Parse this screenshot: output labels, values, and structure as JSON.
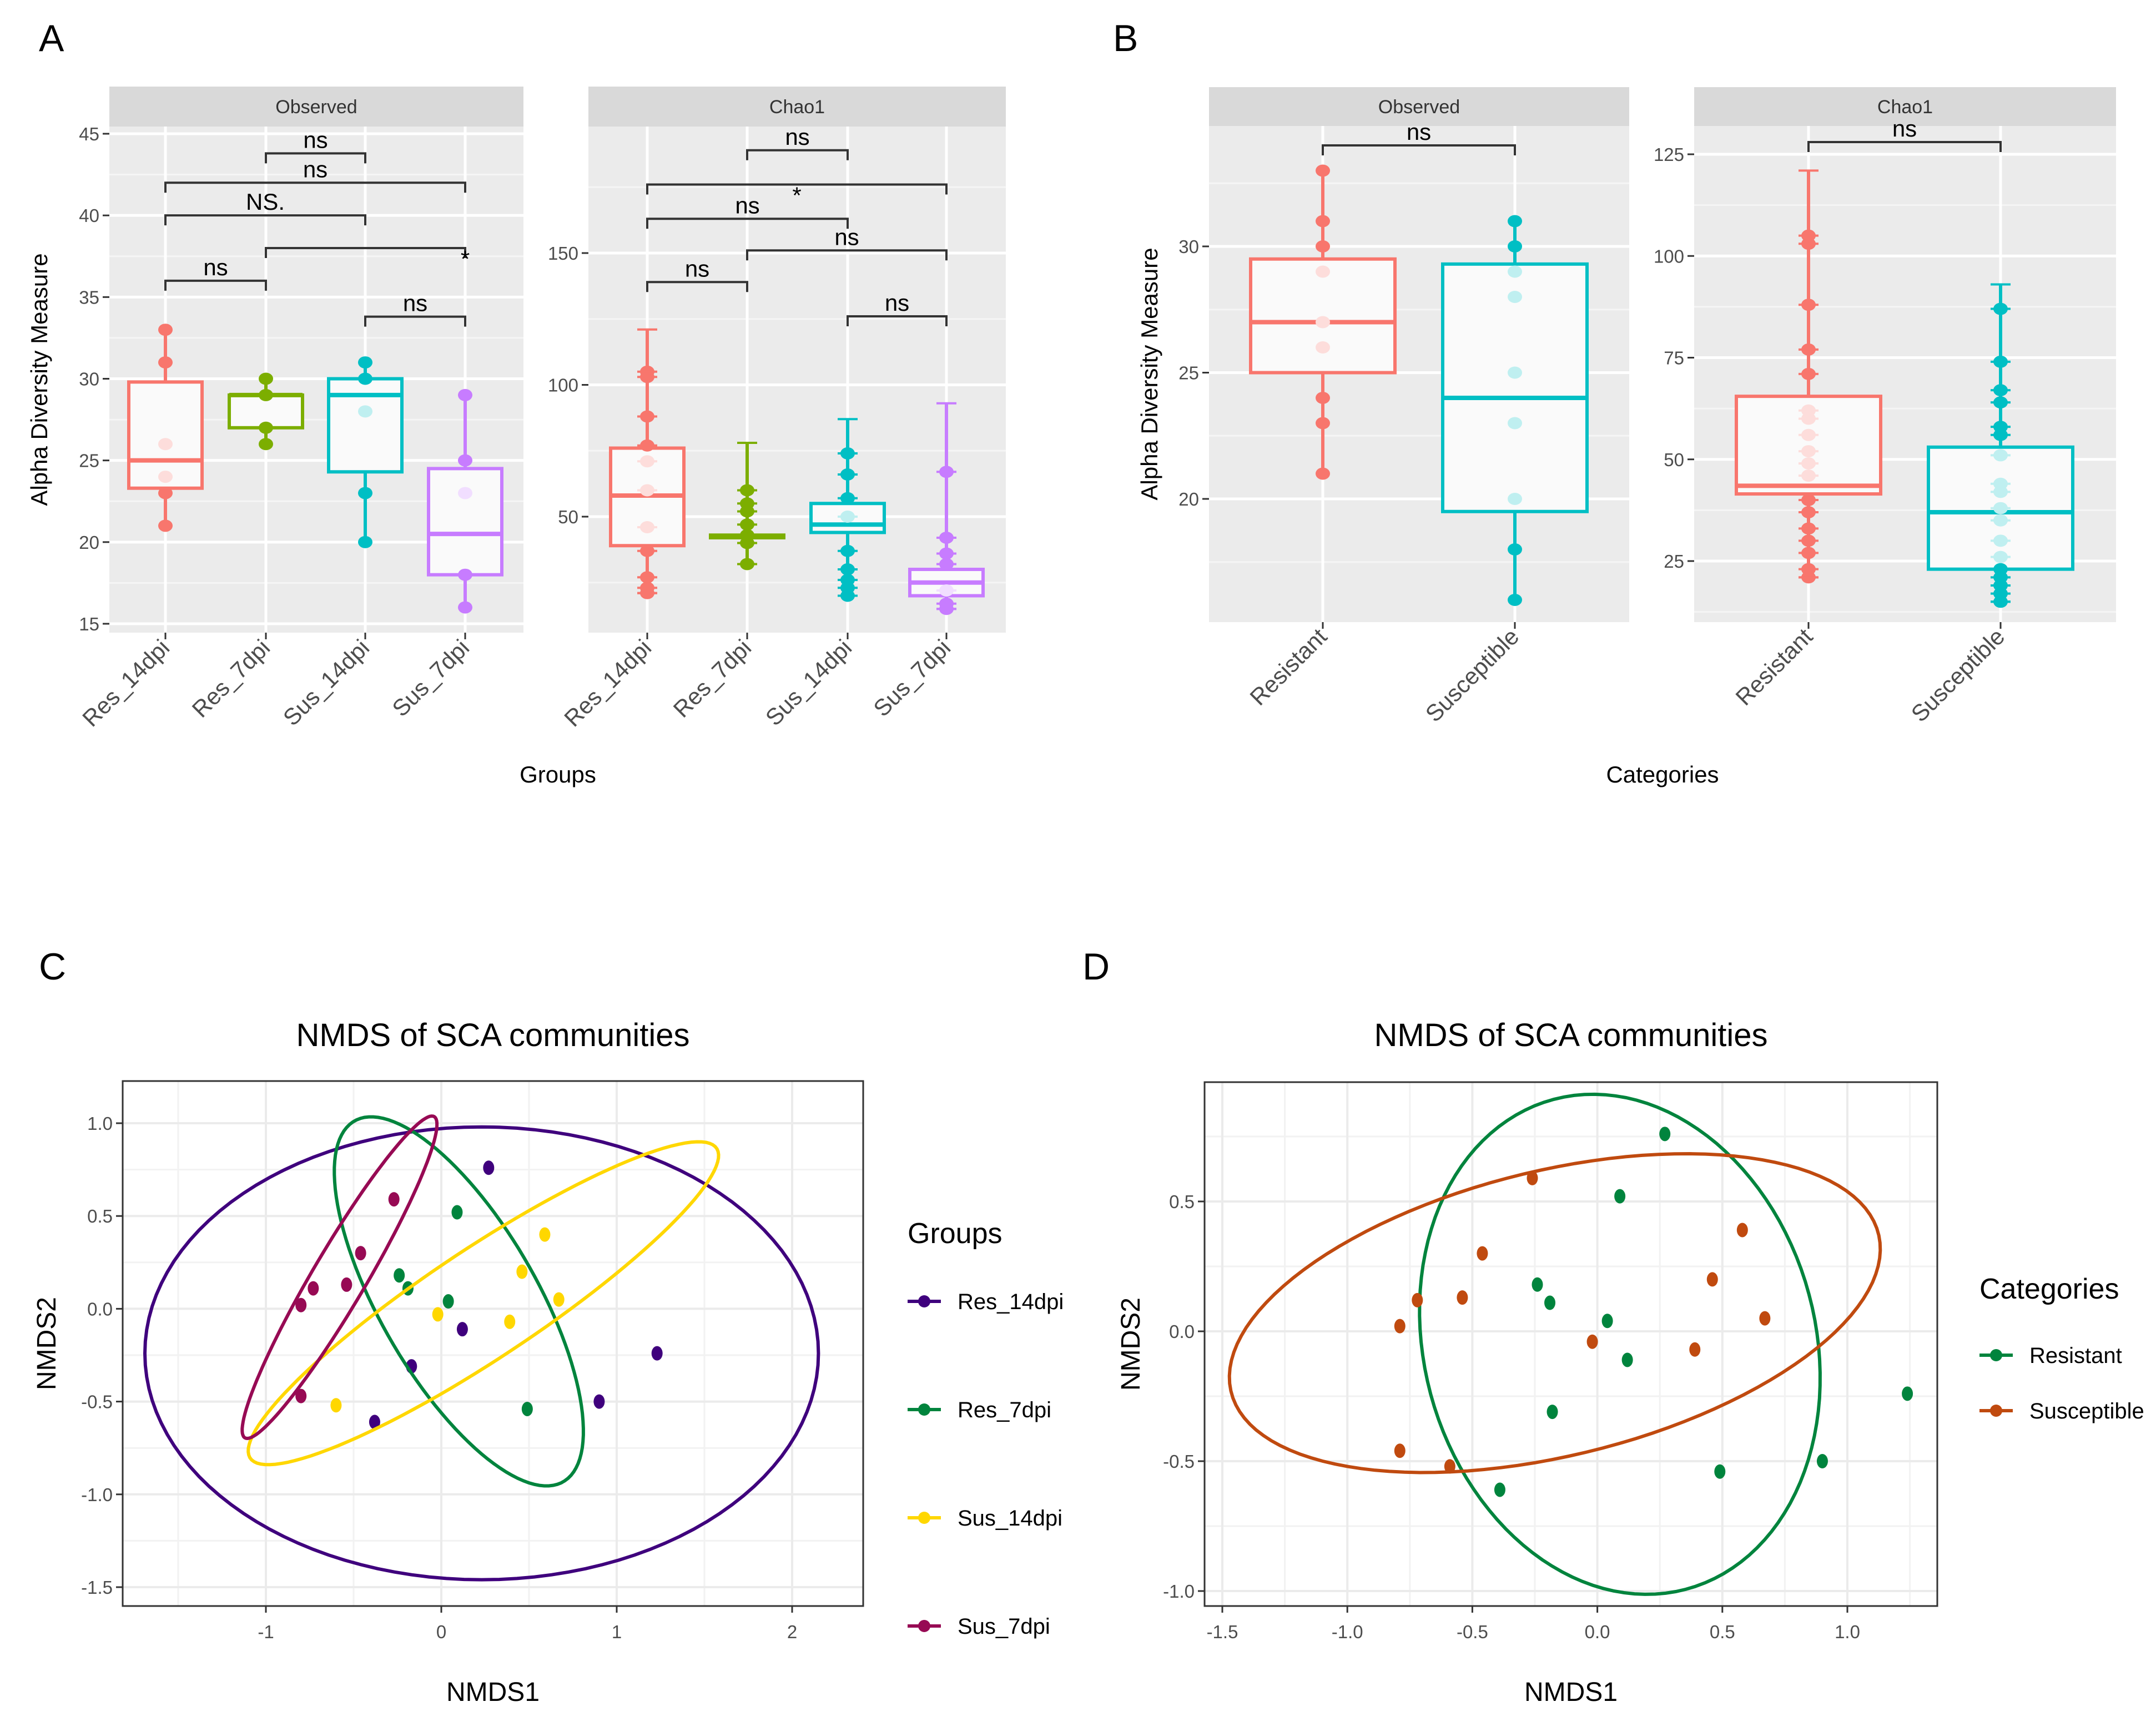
{
  "figure": {
    "panel_letters": [
      "A",
      "B",
      "C",
      "D"
    ]
  },
  "chart_data": [
    {
      "id": "A",
      "type": "box",
      "xlabel": "Groups",
      "ylabel": "Alpha Diversity Measure",
      "categories": [
        "Res_14dpi",
        "Res_7dpi",
        "Sus_14dpi",
        "Sus_7dpi"
      ],
      "colors": [
        "#F8766D",
        "#7CAE00",
        "#00BFC4",
        "#C77CFF"
      ],
      "facets": [
        {
          "strip": "Observed",
          "ylim": [
            15,
            45
          ],
          "yticks": [
            15,
            20,
            25,
            30,
            35,
            40,
            45
          ],
          "boxes": [
            {
              "category": "Res_14dpi",
              "min": 21,
              "q1": 23.3,
              "median": 25,
              "q3": 29.8,
              "max": 33,
              "points": [
                21,
                23,
                24,
                26,
                31,
                33
              ]
            },
            {
              "category": "Res_7dpi",
              "min": 26,
              "q1": 27,
              "median": 29,
              "q3": 29,
              "max": 30,
              "points": [
                26,
                27,
                29,
                30
              ]
            },
            {
              "category": "Sus_14dpi",
              "min": 20,
              "q1": 24.3,
              "median": 29,
              "q3": 30,
              "max": 31,
              "points": [
                20,
                23,
                28,
                30,
                31
              ]
            },
            {
              "category": "Sus_7dpi",
              "min": 16,
              "q1": 18,
              "median": 20.5,
              "q3": 24.5,
              "max": 29,
              "points": [
                16,
                18,
                23,
                25,
                29
              ]
            }
          ],
          "comparisons": [
            {
              "from": "Res_7dpi",
              "to": "Sus_14dpi",
              "y": 43.8,
              "label": "ns"
            },
            {
              "from": "Res_14dpi",
              "to": "Sus_7dpi",
              "y": 42,
              "label": "ns"
            },
            {
              "from": "Res_14dpi",
              "to": "Sus_14dpi",
              "y": 40,
              "label": "NS."
            },
            {
              "from": "Res_7dpi",
              "to": "Sus_7dpi",
              "y": 38,
              "label": "*"
            },
            {
              "from": "Res_14dpi",
              "to": "Res_7dpi",
              "y": 36,
              "label": "ns"
            },
            {
              "from": "Sus_14dpi",
              "to": "Sus_7dpi",
              "y": 33.8,
              "label": "ns"
            }
          ]
        },
        {
          "strip": "Chao1",
          "ylim": [
            10,
            200
          ],
          "yticks": [
            50,
            100,
            150
          ],
          "boxes": [
            {
              "category": "Res_14dpi",
              "min": 21,
              "q1": 39,
              "median": 58,
              "q3": 76,
              "max": 121,
              "points": [
                21,
                23,
                27,
                37,
                46,
                60,
                71,
                77,
                88,
                103,
                105
              ]
            },
            {
              "category": "Res_7dpi",
              "min": 32,
              "q1": 42,
              "median": 42.5,
              "q3": 43,
              "max": 78,
              "points": [
                32,
                40,
                43,
                47,
                52,
                55,
                60
              ]
            },
            {
              "category": "Sus_14dpi",
              "min": 20,
              "q1": 44,
              "median": 47,
              "q3": 55,
              "max": 87,
              "points": [
                20,
                23,
                26,
                30,
                37,
                50,
                57,
                66,
                74
              ]
            },
            {
              "category": "Sus_7dpi",
              "min": 15,
              "q1": 20,
              "median": 25,
              "q3": 30,
              "max": 93,
              "points": [
                15,
                17,
                22,
                32,
                36,
                42,
                67
              ]
            }
          ],
          "comparisons": [
            {
              "from": "Res_7dpi",
              "to": "Sus_14dpi",
              "y": 189,
              "label": "ns"
            },
            {
              "from": "Res_14dpi",
              "to": "Sus_7dpi",
              "y": 176,
              "label": "*"
            },
            {
              "from": "Res_14dpi",
              "to": "Sus_14dpi",
              "y": 163,
              "label": "ns"
            },
            {
              "from": "Res_7dpi",
              "to": "Sus_7dpi",
              "y": 151,
              "label": "ns"
            },
            {
              "from": "Res_14dpi",
              "to": "Res_7dpi",
              "y": 139,
              "label": "ns"
            },
            {
              "from": "Sus_14dpi",
              "to": "Sus_7dpi",
              "y": 126,
              "label": "ns"
            }
          ]
        }
      ]
    },
    {
      "id": "B",
      "type": "box",
      "xlabel": "Categories",
      "ylabel": "Alpha Diversity Measure",
      "categories": [
        "Resistant",
        "Susceptible"
      ],
      "colors": [
        "#F8766D",
        "#00BFC4"
      ],
      "facets": [
        {
          "strip": "Observed",
          "ylim": [
            14.9,
            35.2
          ],
          "yticks": [
            20,
            25,
            30
          ],
          "boxes": [
            {
              "category": "Resistant",
              "min": 21,
              "q1": 25,
              "median": 27,
              "q3": 29.5,
              "max": 33,
              "points": [
                21,
                23,
                24,
                26,
                27,
                29,
                30,
                31,
                33
              ]
            },
            {
              "category": "Susceptible",
              "min": 16,
              "q1": 19.5,
              "median": 24,
              "q3": 29.3,
              "max": 31,
              "points": [
                16,
                18,
                20,
                23,
                25,
                28,
                29,
                30,
                31
              ]
            }
          ],
          "comparisons": [
            {
              "from": "Resistant",
              "to": "Susceptible",
              "y": 34,
              "label": "ns"
            }
          ]
        },
        {
          "strip": "Chao1",
          "ylim": [
            11,
            132
          ],
          "yticks": [
            25,
            50,
            75,
            100,
            125
          ],
          "boxes": [
            {
              "category": "Resistant",
              "min": 21,
              "q1": 41.5,
              "median": 43.5,
              "q3": 65.5,
              "max": 121,
              "points": [
                21,
                23,
                27,
                30,
                33,
                37,
                40,
                46,
                49,
                52,
                56,
                60,
                62,
                71,
                77,
                88,
                103,
                105
              ]
            },
            {
              "category": "Susceptible",
              "min": 15,
              "q1": 23,
              "median": 37,
              "q3": 53,
              "max": 93,
              "points": [
                15,
                17,
                19,
                21,
                23,
                26,
                30,
                35,
                38,
                42,
                44,
                51,
                56,
                58,
                64,
                67,
                74,
                87
              ]
            }
          ],
          "comparisons": [
            {
              "from": "Resistant",
              "to": "Susceptible",
              "y": 128,
              "label": "ns"
            }
          ]
        }
      ]
    },
    {
      "id": "C",
      "type": "scatter",
      "title": "NMDS of SCA communities",
      "xlabel": "NMDS1",
      "ylabel": "NMDS2",
      "xlim": [
        -1.82,
        2.4
      ],
      "ylim": [
        -1.6,
        1.2
      ],
      "xticks": [
        -1,
        0,
        1,
        2
      ],
      "xtick_labels": [
        "-1",
        "0",
        "1",
        "2"
      ],
      "yticks": [
        -1.5,
        -1.0,
        -0.5,
        0.0,
        0.5,
        1.0
      ],
      "ytick_labels": [
        "-1.5",
        "-1.0",
        "-0.5",
        "0.0",
        "0.5",
        "1.0"
      ],
      "legend_title": "Groups",
      "legend_position": "right",
      "grid": true,
      "series": [
        {
          "name": "Res_14dpi",
          "color": "#3F007D",
          "ellipse": {
            "cx": 0.23,
            "cy": -0.24,
            "rx": 1.92,
            "ry": 1.22,
            "angle": 0
          },
          "points": [
            [
              0.27,
              0.76
            ],
            [
              0.12,
              -0.11
            ],
            [
              -0.17,
              -0.31
            ],
            [
              -0.38,
              -0.61
            ],
            [
              0.9,
              -0.5
            ],
            [
              1.23,
              -0.24
            ]
          ]
        },
        {
          "name": "Res_7dpi",
          "color": "#00843D",
          "ellipse": {
            "cx": 0.1,
            "cy": 0.04,
            "rx": 1.14,
            "ry": 0.44,
            "angle": -58
          },
          "points": [
            [
              0.09,
              0.52
            ],
            [
              -0.24,
              0.18
            ],
            [
              -0.19,
              0.11
            ],
            [
              0.04,
              0.04
            ],
            [
              0.49,
              -0.54
            ]
          ]
        },
        {
          "name": "Sus_14dpi",
          "color": "#FFD700",
          "ellipse": {
            "cx": 0.24,
            "cy": 0.03,
            "rx": 1.57,
            "ry": 0.3,
            "angle": 32
          },
          "points": [
            [
              0.59,
              0.4
            ],
            [
              0.46,
              0.2
            ],
            [
              0.67,
              0.05
            ],
            [
              -0.02,
              -0.03
            ],
            [
              0.39,
              -0.07
            ],
            [
              -0.6,
              -0.52
            ]
          ]
        },
        {
          "name": "Sus_7dpi",
          "color": "#970A54",
          "ellipse": {
            "cx": -0.58,
            "cy": 0.17,
            "rx": 1.02,
            "ry": 0.15,
            "angle": 58
          },
          "points": [
            [
              -0.27,
              0.59
            ],
            [
              -0.46,
              0.3
            ],
            [
              -0.54,
              0.13
            ],
            [
              -0.73,
              0.11
            ],
            [
              -0.8,
              0.02
            ],
            [
              -0.8,
              -0.47
            ]
          ]
        }
      ]
    },
    {
      "id": "D",
      "type": "scatter",
      "title": "NMDS of SCA communities",
      "xlabel": "NMDS1",
      "ylabel": "NMDS2",
      "xlim": [
        -1.57,
        1.36
      ],
      "ylim": [
        -1.06,
        0.96
      ],
      "xticks": [
        -1.5,
        -1.0,
        -0.5,
        0.0,
        0.5,
        1.0
      ],
      "xtick_labels": [
        "-1.5",
        "-1.0",
        "-0.5",
        "0.0",
        "0.5",
        "1.0"
      ],
      "yticks": [
        -1.0,
        -0.5,
        0.0,
        0.5
      ],
      "ytick_labels": [
        "-1.0",
        "-0.5",
        "0.0",
        "0.5"
      ],
      "legend_title": "Categories",
      "legend_position": "right",
      "grid": true,
      "series": [
        {
          "name": "Resistant",
          "color": "#00843D",
          "ellipse": {
            "cx": 0.09,
            "cy": -0.05,
            "rx": 0.98,
            "ry": 0.78,
            "angle": -72
          },
          "points": [
            [
              0.27,
              0.76
            ],
            [
              0.09,
              0.52
            ],
            [
              -0.24,
              0.18
            ],
            [
              -0.19,
              0.11
            ],
            [
              0.04,
              0.04
            ],
            [
              0.12,
              -0.11
            ],
            [
              -0.18,
              -0.31
            ],
            [
              -0.39,
              -0.61
            ],
            [
              0.49,
              -0.54
            ],
            [
              0.9,
              -0.5
            ],
            [
              1.24,
              -0.24
            ]
          ]
        },
        {
          "name": "Susceptible",
          "color": "#C04A0F",
          "ellipse": {
            "cx": -0.17,
            "cy": 0.07,
            "rx": 1.33,
            "ry": 0.55,
            "angle": 13
          },
          "points": [
            [
              -0.26,
              0.59
            ],
            [
              -0.46,
              0.3
            ],
            [
              -0.54,
              0.13
            ],
            [
              -0.72,
              0.12
            ],
            [
              -0.79,
              0.02
            ],
            [
              -0.02,
              -0.04
            ],
            [
              0.58,
              0.39
            ],
            [
              0.46,
              0.2
            ],
            [
              0.67,
              0.05
            ],
            [
              0.39,
              -0.07
            ],
            [
              -0.79,
              -0.46
            ],
            [
              -0.59,
              -0.52
            ]
          ]
        }
      ]
    }
  ]
}
